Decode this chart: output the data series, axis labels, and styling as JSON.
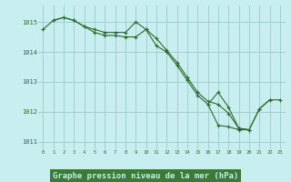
{
  "x": [
    0,
    1,
    2,
    3,
    4,
    5,
    6,
    7,
    8,
    9,
    10,
    11,
    12,
    13,
    14,
    15,
    16,
    17,
    18,
    19,
    20,
    21,
    22,
    23
  ],
  "line1": [
    1014.75,
    1015.05,
    1015.15,
    1015.05,
    1014.85,
    1014.75,
    1014.65,
    1014.65,
    1014.65,
    1015.0,
    1014.75,
    1014.2,
    1014.0,
    1013.55,
    1013.05,
    1012.55,
    1012.25,
    1011.55,
    1011.5,
    1011.4,
    1011.4,
    1012.1,
    1012.4,
    null
  ],
  "line2": [
    null,
    1015.05,
    1015.15,
    1015.05,
    1014.85,
    1014.65,
    1014.55,
    1014.55,
    1014.5,
    1014.5,
    1014.75,
    1014.45,
    1014.05,
    1013.65,
    1013.15,
    1012.65,
    1012.35,
    1012.25,
    1011.95,
    1011.45,
    1011.4,
    null,
    null,
    null
  ],
  "line3": [
    null,
    null,
    null,
    null,
    null,
    null,
    null,
    null,
    null,
    null,
    null,
    null,
    null,
    null,
    null,
    null,
    1012.25,
    1012.65,
    1012.15,
    1011.45,
    1011.4,
    1012.1,
    1012.4,
    1012.4
  ],
  "bg_color": "#c8eef0",
  "grid_color": "#9ecfcf",
  "line_color": "#2d6a2d",
  "xlabel": "Graphe pression niveau de la mer (hPa)",
  "xlabel_bg": "#3a7a3a",
  "xlabel_fg": "#c8eef0",
  "ylim": [
    1010.75,
    1015.55
  ],
  "xlim": [
    -0.5,
    23.5
  ],
  "yticks": [
    1011,
    1012,
    1013,
    1014,
    1015
  ],
  "xticks": [
    0,
    1,
    2,
    3,
    4,
    5,
    6,
    7,
    8,
    9,
    10,
    11,
    12,
    13,
    14,
    15,
    16,
    17,
    18,
    19,
    20,
    21,
    22,
    23
  ]
}
